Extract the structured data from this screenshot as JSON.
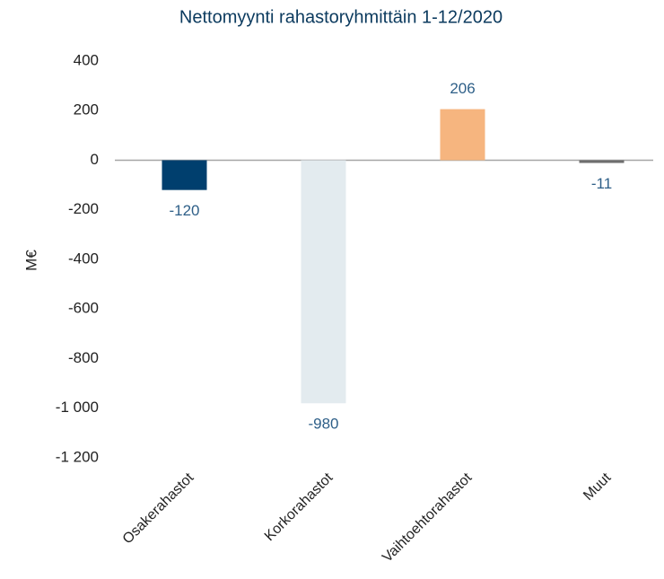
{
  "chart_data": {
    "type": "bar",
    "title": "Nettomyynti rahastoryhmittäin 1-12/2020",
    "y_label": "M€",
    "categories": [
      "Osakerahastot",
      "Korkorahastot",
      "Vaihtoehtorahastot",
      "Muut"
    ],
    "values": [
      -120,
      -980,
      206,
      -11
    ],
    "colors": [
      "#003f6e",
      "#e3ebef",
      "#f6b57f",
      "#6e6e6e"
    ],
    "ylim": [
      -1200,
      400
    ],
    "yticks": [
      400,
      200,
      0,
      -200,
      -400,
      -600,
      -800,
      {
        "value": -1000,
        "label": "-1 000"
      },
      {
        "value": -1200,
        "label": "-1 200"
      }
    ]
  }
}
